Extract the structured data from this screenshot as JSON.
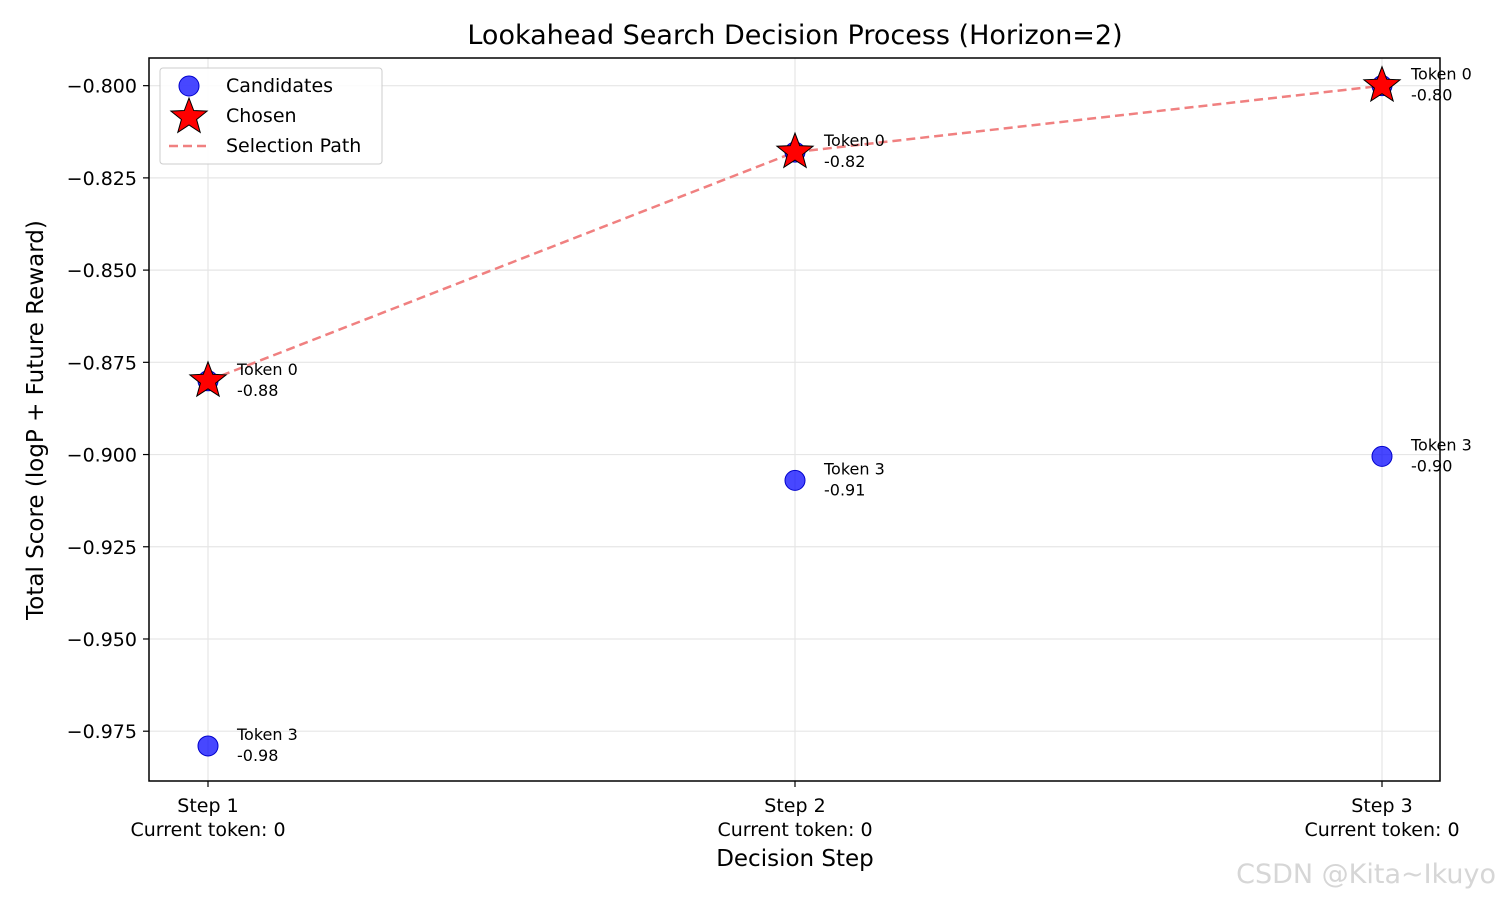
{
  "watermark": "CSDN @Kita~Ikuyo",
  "chart_data": {
    "type": "scatter",
    "title": "Lookahead Search Decision Process (Horizon=2)",
    "xlabel": "Decision Step",
    "ylabel": "Total Score (logP + Future Reward)",
    "categories": [
      [
        "Step 1",
        "Current token: 0"
      ],
      [
        "Step 2",
        "Current token: 0"
      ],
      [
        "Step 3",
        "Current token: 0"
      ]
    ],
    "ylim": [
      -0.9885,
      -0.7925
    ],
    "yticks": [
      -0.8,
      -0.825,
      -0.85,
      -0.875,
      -0.9,
      -0.925,
      -0.95,
      -0.975
    ],
    "ytick_labels": [
      "−0.800",
      "−0.825",
      "−0.850",
      "−0.875",
      "−0.900",
      "−0.925",
      "−0.950",
      "−0.975"
    ],
    "grid": true,
    "legend_position": "top-left",
    "legend": [
      "Candidates",
      "Chosen",
      "Selection Path"
    ],
    "candidates": [
      {
        "step": 1,
        "token": "Token 0",
        "score": -0.88,
        "label": "-0.88"
      },
      {
        "step": 1,
        "token": "Token 3",
        "score": -0.979,
        "label": "-0.98"
      },
      {
        "step": 2,
        "token": "Token 0",
        "score": -0.818,
        "label": "-0.82"
      },
      {
        "step": 2,
        "token": "Token 3",
        "score": -0.907,
        "label": "-0.91"
      },
      {
        "step": 3,
        "token": "Token 0",
        "score": -0.8,
        "label": "-0.80"
      },
      {
        "step": 3,
        "token": "Token 3",
        "score": -0.9005,
        "label": "-0.90"
      }
    ],
    "chosen": [
      {
        "step": 1,
        "score": -0.88
      },
      {
        "step": 2,
        "score": -0.818
      },
      {
        "step": 3,
        "score": -0.8
      }
    ],
    "colors": {
      "candidate": "#0000ff",
      "chosen": "#ff0000",
      "path": "#f08080"
    }
  }
}
